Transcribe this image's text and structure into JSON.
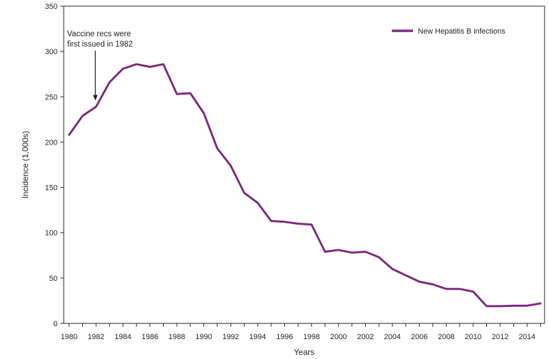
{
  "chart_data": {
    "type": "line",
    "title": "",
    "xlabel": "Years",
    "ylabel": "Incidence (1,000s)",
    "xlim": [
      1979.6,
      2015.3
    ],
    "ylim": [
      0,
      350
    ],
    "x_ticks": [
      "1980",
      "1982",
      "1984",
      "1986",
      "1988",
      "1990",
      "1992",
      "1994",
      "1996",
      "1998",
      "2000",
      "2002",
      "2004",
      "2006",
      "2008",
      "2010",
      "2012",
      "2014"
    ],
    "y_ticks": [
      0,
      50,
      100,
      150,
      200,
      250,
      300,
      350
    ],
    "grid": false,
    "legend_position": "top-right",
    "series": [
      {
        "name": "New Hepatitis B infections",
        "color": "#7b2a7e",
        "x": [
          1980,
          1981,
          1982,
          1983,
          1984,
          1985,
          1986,
          1987,
          1988,
          1989,
          1990,
          1991,
          1992,
          1993,
          1994,
          1995,
          1996,
          1997,
          1998,
          1999,
          2000,
          2001,
          2002,
          2003,
          2004,
          2005,
          2006,
          2007,
          2008,
          2009,
          2010,
          2011,
          2012,
          2013,
          2014,
          2015
        ],
        "y": [
          208,
          229,
          239,
          266,
          281,
          286,
          283,
          286,
          253,
          254,
          232,
          193,
          174,
          144,
          133,
          113,
          112,
          110,
          109,
          79,
          81,
          78,
          79,
          73,
          60,
          53,
          46,
          43,
          38,
          38,
          35,
          19,
          19,
          19.5,
          19.5,
          22
        ]
      }
    ],
    "annotations": [
      {
        "text_lines": [
          "Vaccine recs were",
          "first issued in 1982"
        ],
        "target_x": 1982,
        "target_y": 246
      }
    ]
  }
}
